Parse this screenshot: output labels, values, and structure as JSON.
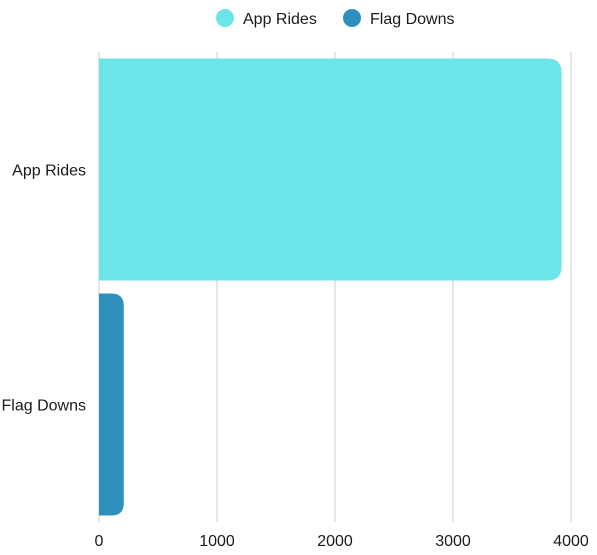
{
  "chart_data": {
    "type": "bar",
    "orientation": "horizontal",
    "categories": [
      "App Rides",
      "Flag Downs"
    ],
    "series": [
      {
        "name": "App Rides",
        "values": [
          3920,
          null
        ],
        "color": "#6BE5E8"
      },
      {
        "name": "Flag Downs",
        "values": [
          null,
          210
        ],
        "color": "#2E8FBC"
      }
    ],
    "xlim": [
      0,
      4000
    ],
    "xticks": [
      "0",
      "1000",
      "2000",
      "3000",
      "4000"
    ],
    "grid": true,
    "legend_position": "top-center",
    "title": "",
    "xlabel": "",
    "ylabel": ""
  }
}
